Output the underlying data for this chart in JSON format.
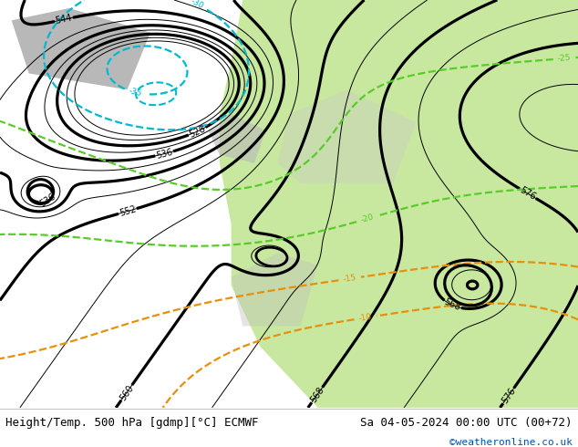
{
  "title_left": "Height/Temp. 500 hPa [gdmp][°C] ECMWF",
  "title_right": "Sa 04-05-2024 00:00 UTC (00+72)",
  "credit": "©weatheronline.co.uk",
  "bg_ocean_color": "#d8d8d8",
  "land_green_color": "#c8e8a0",
  "land_gray_color": "#b8b8b8",
  "contour_height_color": "#000000",
  "contour_temp_warm_color": "#e8900a",
  "contour_temp_cold_cyan_color": "#00b8d0",
  "contour_temp_cold_green_color": "#58cc28",
  "footer_bg": "#ffffff",
  "footer_text_color": "#000000",
  "credit_color": "#0050b0"
}
